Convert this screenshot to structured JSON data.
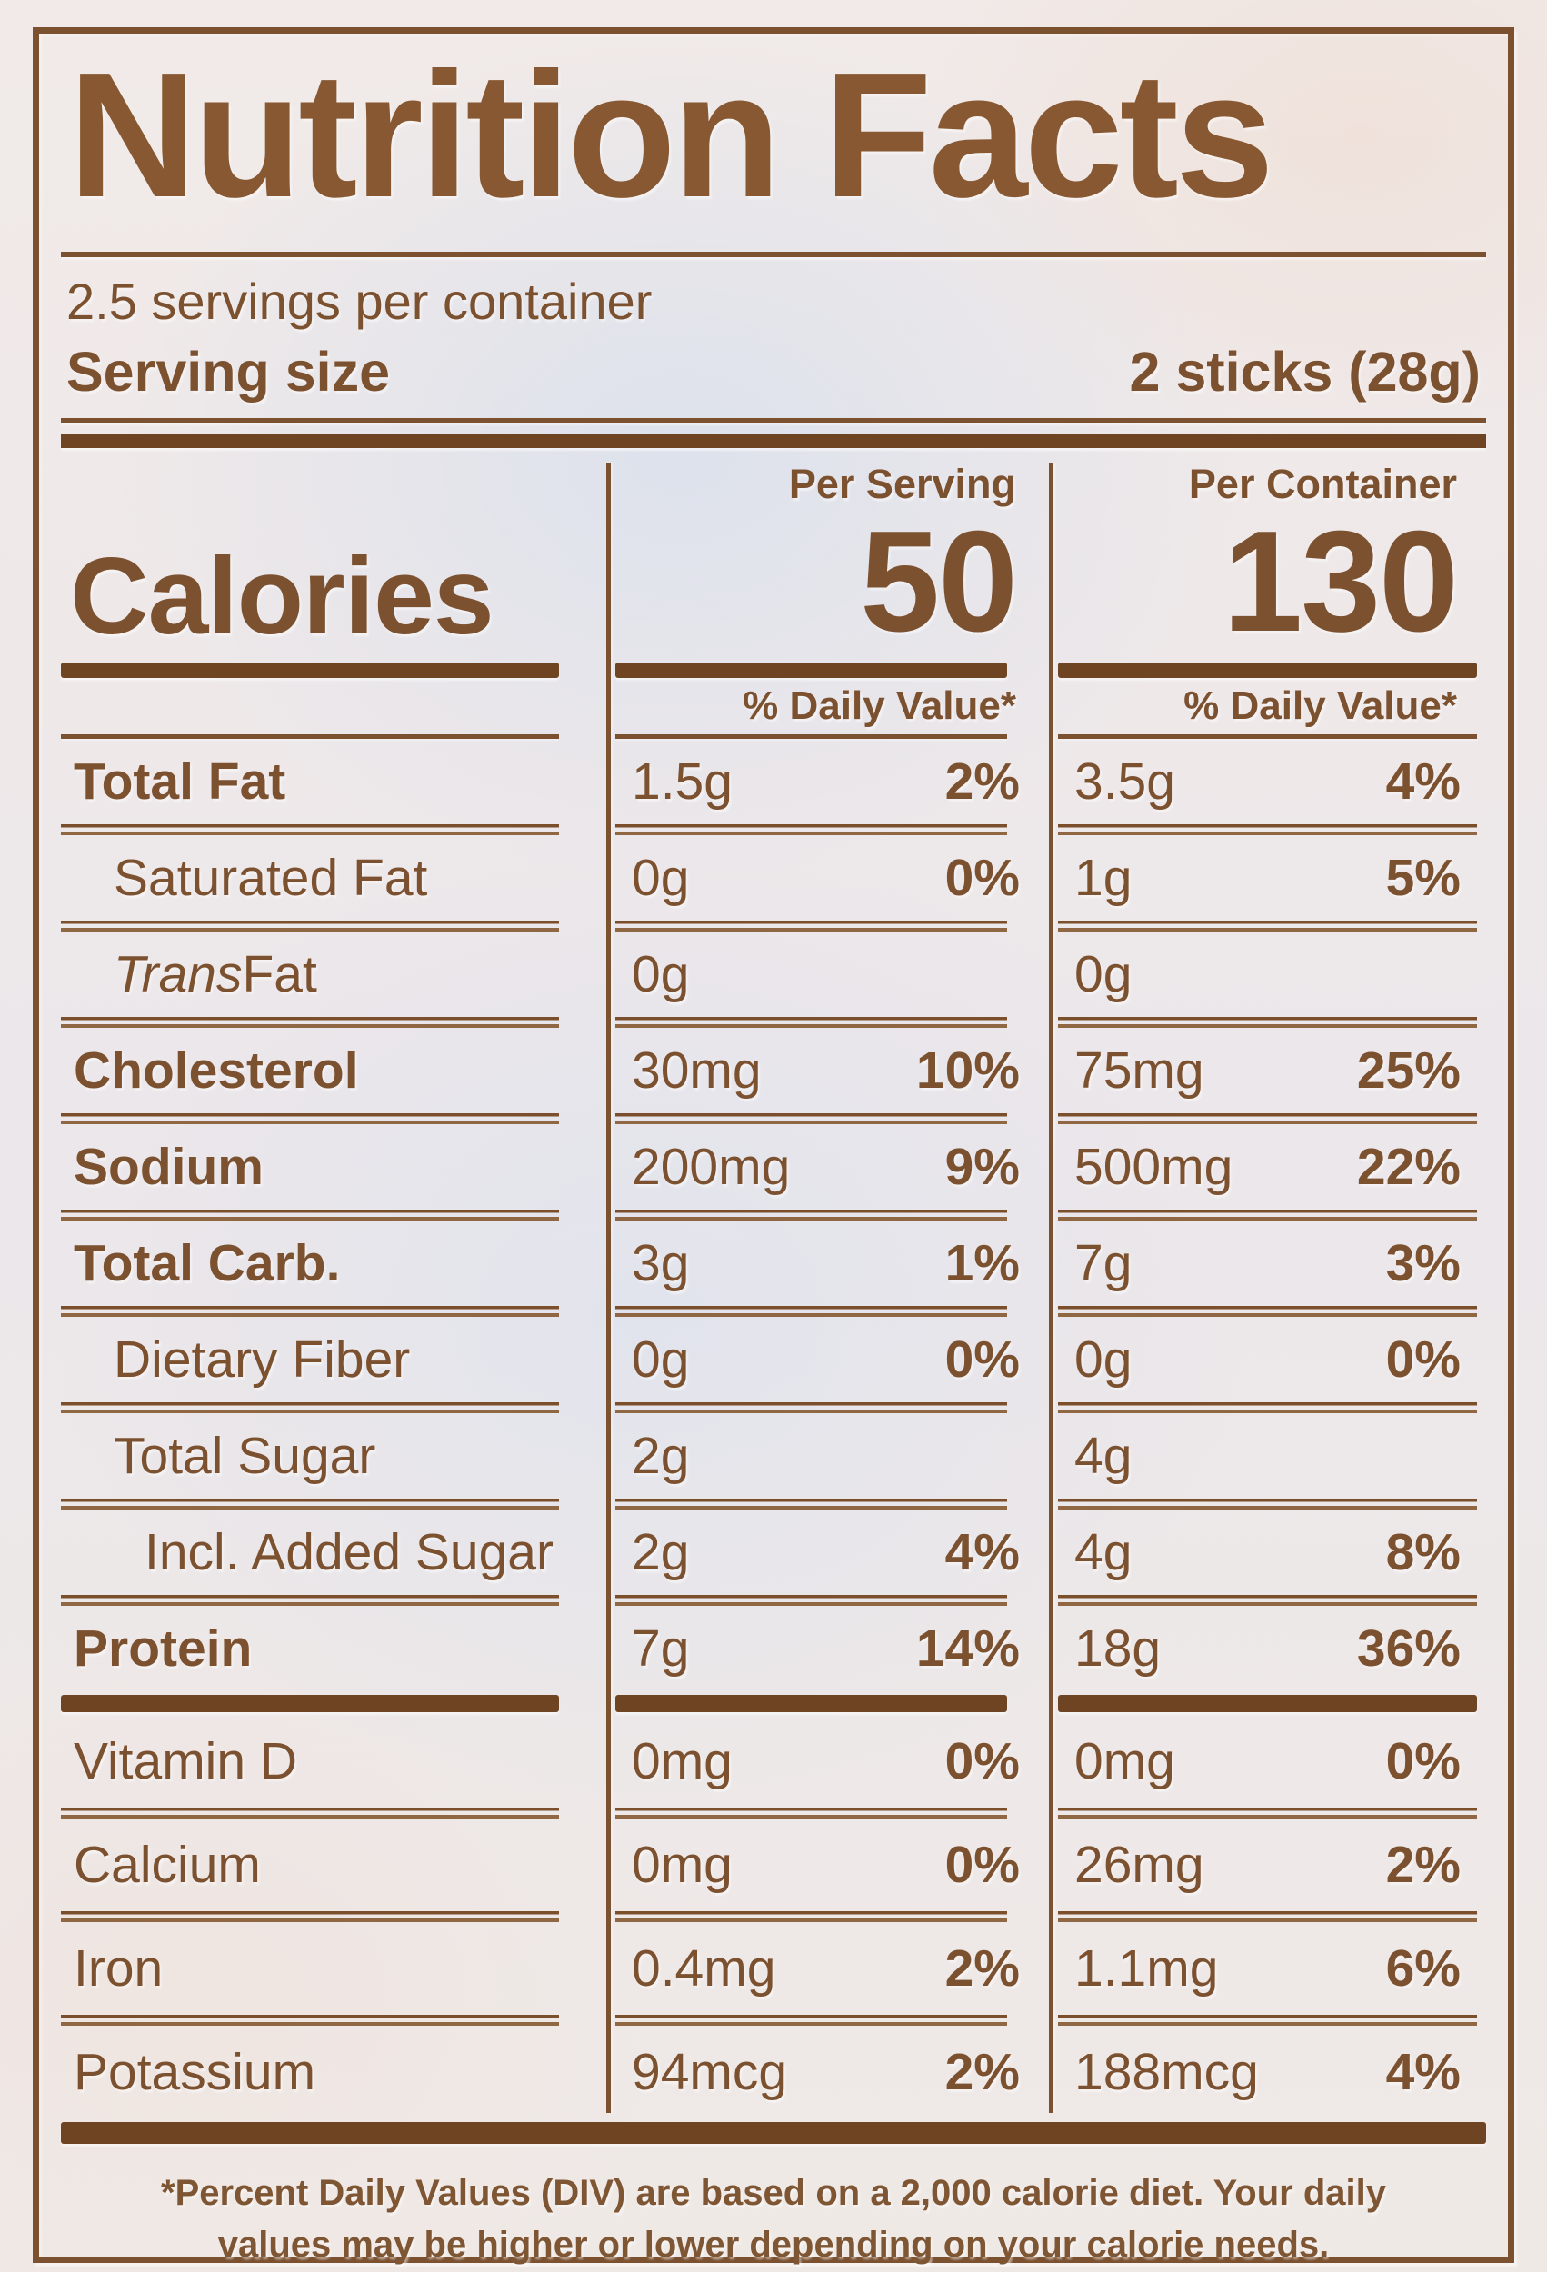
{
  "label": {
    "title": "Nutrition Facts",
    "servings_per_container": "2.5 servings per container",
    "serving_size_label": "Serving size",
    "serving_size_value": "2 sticks (28g)",
    "calories": {
      "label": "Calories",
      "per_serving_header": "Per Serving",
      "per_container_header": "Per Container",
      "per_serving_value": "50",
      "per_container_value": "130",
      "daily_value_header": "% Daily Value*"
    },
    "rows": [
      {
        "name": "Total Fat",
        "serving_amount": "1.5g",
        "serving_dv": "2%",
        "container_amount": "3.5g",
        "container_dv": "4%"
      },
      {
        "name": "Saturated Fat",
        "serving_amount": "0g",
        "serving_dv": "0%",
        "container_amount": "1g",
        "container_dv": "5%"
      },
      {
        "name_italic": "Trans",
        "name": " Fat",
        "serving_amount": "0g",
        "serving_dv": "",
        "container_amount": "0g",
        "container_dv": ""
      },
      {
        "name": "Cholesterol",
        "serving_amount": "30mg",
        "serving_dv": "10%",
        "container_amount": "75mg",
        "container_dv": "25%"
      },
      {
        "name": "Sodium",
        "serving_amount": "200mg",
        "serving_dv": "9%",
        "container_amount": "500mg",
        "container_dv": "22%"
      },
      {
        "name": "Total Carb.",
        "serving_amount": "3g",
        "serving_dv": "1%",
        "container_amount": "7g",
        "container_dv": "3%"
      },
      {
        "name": "Dietary Fiber",
        "serving_amount": "0g",
        "serving_dv": "0%",
        "container_amount": "0g",
        "container_dv": "0%"
      },
      {
        "name": "Total Sugar",
        "serving_amount": "2g",
        "serving_dv": "",
        "container_amount": "4g",
        "container_dv": ""
      },
      {
        "name": "Incl. Added Sugar",
        "serving_amount": "2g",
        "serving_dv": "4%",
        "container_amount": "4g",
        "container_dv": "8%"
      },
      {
        "name": "Protein",
        "serving_amount": "7g",
        "serving_dv": "14%",
        "container_amount": "18g",
        "container_dv": "36%"
      },
      {
        "name": "Vitamin D",
        "serving_amount": "0mg",
        "serving_dv": "0%",
        "container_amount": "0mg",
        "container_dv": "0%"
      },
      {
        "name": "Calcium",
        "serving_amount": "0mg",
        "serving_dv": "0%",
        "container_amount": "26mg",
        "container_dv": "2%"
      },
      {
        "name": "Iron",
        "serving_amount": "0.4mg",
        "serving_dv": "2%",
        "container_amount": "1.1mg",
        "container_dv": "6%"
      },
      {
        "name": "Potassium",
        "serving_amount": "94mcg",
        "serving_dv": "2%",
        "container_amount": "188mcg",
        "container_dv": "4%"
      }
    ],
    "footnote": "*Percent Daily Values (DIV) are based on a 2,000 calorie diet. Your daily values may be higher or lower depending on your calorie needs."
  },
  "colors": {
    "ink_brown": "#7c5130",
    "rule_brown": "#6e4423",
    "paper": "#efe9e7"
  }
}
